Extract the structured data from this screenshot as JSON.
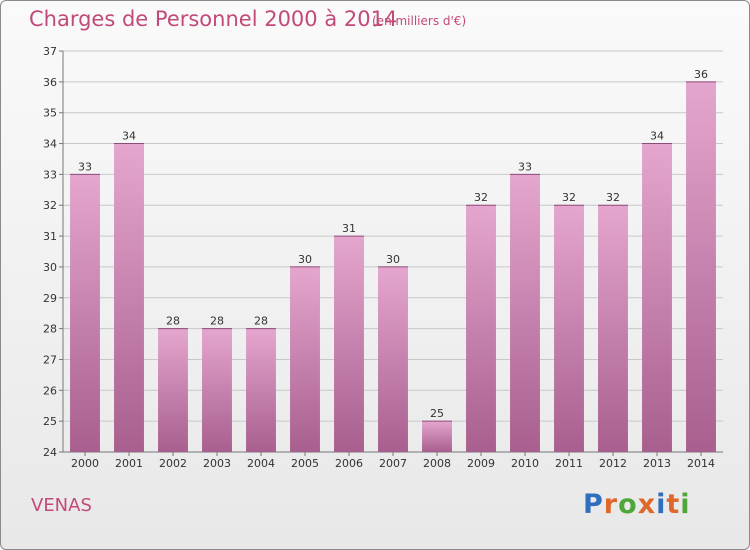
{
  "title": "Charges de Personnel 2000 à 2014",
  "subtitle": "(en milliers d'€)",
  "commune": "VENAS",
  "logo": {
    "text": "Proxiti",
    "letter_colors": [
      "#2f6fbf",
      "#e0672b",
      "#4fa63a",
      "#e0672b",
      "#2f6fbf",
      "#e0672b",
      "#4fa63a"
    ]
  },
  "colors": {
    "bar_light": "#e4a6ce",
    "bar_dark": "#a85f8f",
    "accent": "#c24a7a"
  },
  "chart_data": {
    "type": "bar",
    "title": "Charges de Personnel 2000 à 2014",
    "subtitle": "(en milliers d'€)",
    "categories": [
      "2000",
      "2001",
      "2002",
      "2003",
      "2004",
      "2005",
      "2006",
      "2007",
      "2008",
      "2009",
      "2010",
      "2011",
      "2012",
      "2013",
      "2014"
    ],
    "values": [
      33,
      34,
      28,
      28,
      28,
      30,
      31,
      30,
      25,
      32,
      33,
      32,
      32,
      34,
      36
    ],
    "ylim": [
      24,
      37
    ],
    "yticks": [
      24,
      25,
      26,
      27,
      28,
      29,
      30,
      31,
      32,
      33,
      34,
      35,
      36,
      37
    ],
    "grid": true,
    "xlabel": "",
    "ylabel": ""
  }
}
